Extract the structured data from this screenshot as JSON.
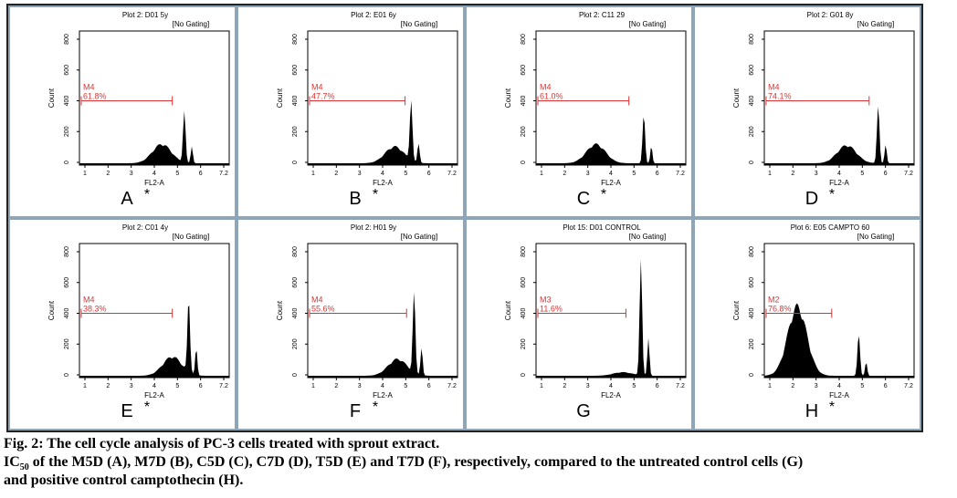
{
  "axis": {
    "ylabel": "Count",
    "xlabel": "FL2-A",
    "yticks": [
      0,
      200,
      400,
      600,
      800
    ],
    "xticks": [
      "1",
      "2",
      "3",
      "4",
      "5",
      "6",
      "7.2"
    ]
  },
  "gating": "[No Gating]",
  "panels": [
    {
      "title": "Plot 2: D01 5y",
      "marker": "M4",
      "percent": "61.8%",
      "letter": "A",
      "star": "*"
    },
    {
      "title": "Plot 2: E01 6y",
      "marker": "M4",
      "percent": "47.7%",
      "letter": "B",
      "star": "*"
    },
    {
      "title": "Plot 2: C11 29",
      "marker": "M4",
      "percent": "61.0%",
      "letter": "C",
      "star": "*"
    },
    {
      "title": "Plot 2: G01 8y",
      "marker": "M4",
      "percent": "74.1%",
      "letter": "D",
      "star": "*"
    },
    {
      "title": "Plot 2: C01 4y",
      "marker": "M4",
      "percent": "38.3%",
      "letter": "E",
      "star": "*"
    },
    {
      "title": "Plot 2: H01 9y",
      "marker": "M4",
      "percent": "55.6%",
      "letter": "F",
      "star": "*"
    },
    {
      "title": "Plot 15: D01 CONTROL",
      "marker": "M3",
      "percent": "11.6%",
      "letter": "G"
    },
    {
      "title": "Plot 6: E05 CAMPTO 60",
      "marker": "M2",
      "percent": "76.8%",
      "letter": "H",
      "star": "*"
    }
  ],
  "caption": {
    "line1": "Fig. 2: The cell cycle analysis of PC-3 cells treated with sprout extract.",
    "ic": "IC",
    "sub": "50",
    "line2": " of the M5D (A), M7D (B), C5D (C), C7D (D), T5D (E) and T7D (F), respectively, compared to the untreated control cells (G)",
    "line3": "and positive control camptothecin (H)."
  }
}
